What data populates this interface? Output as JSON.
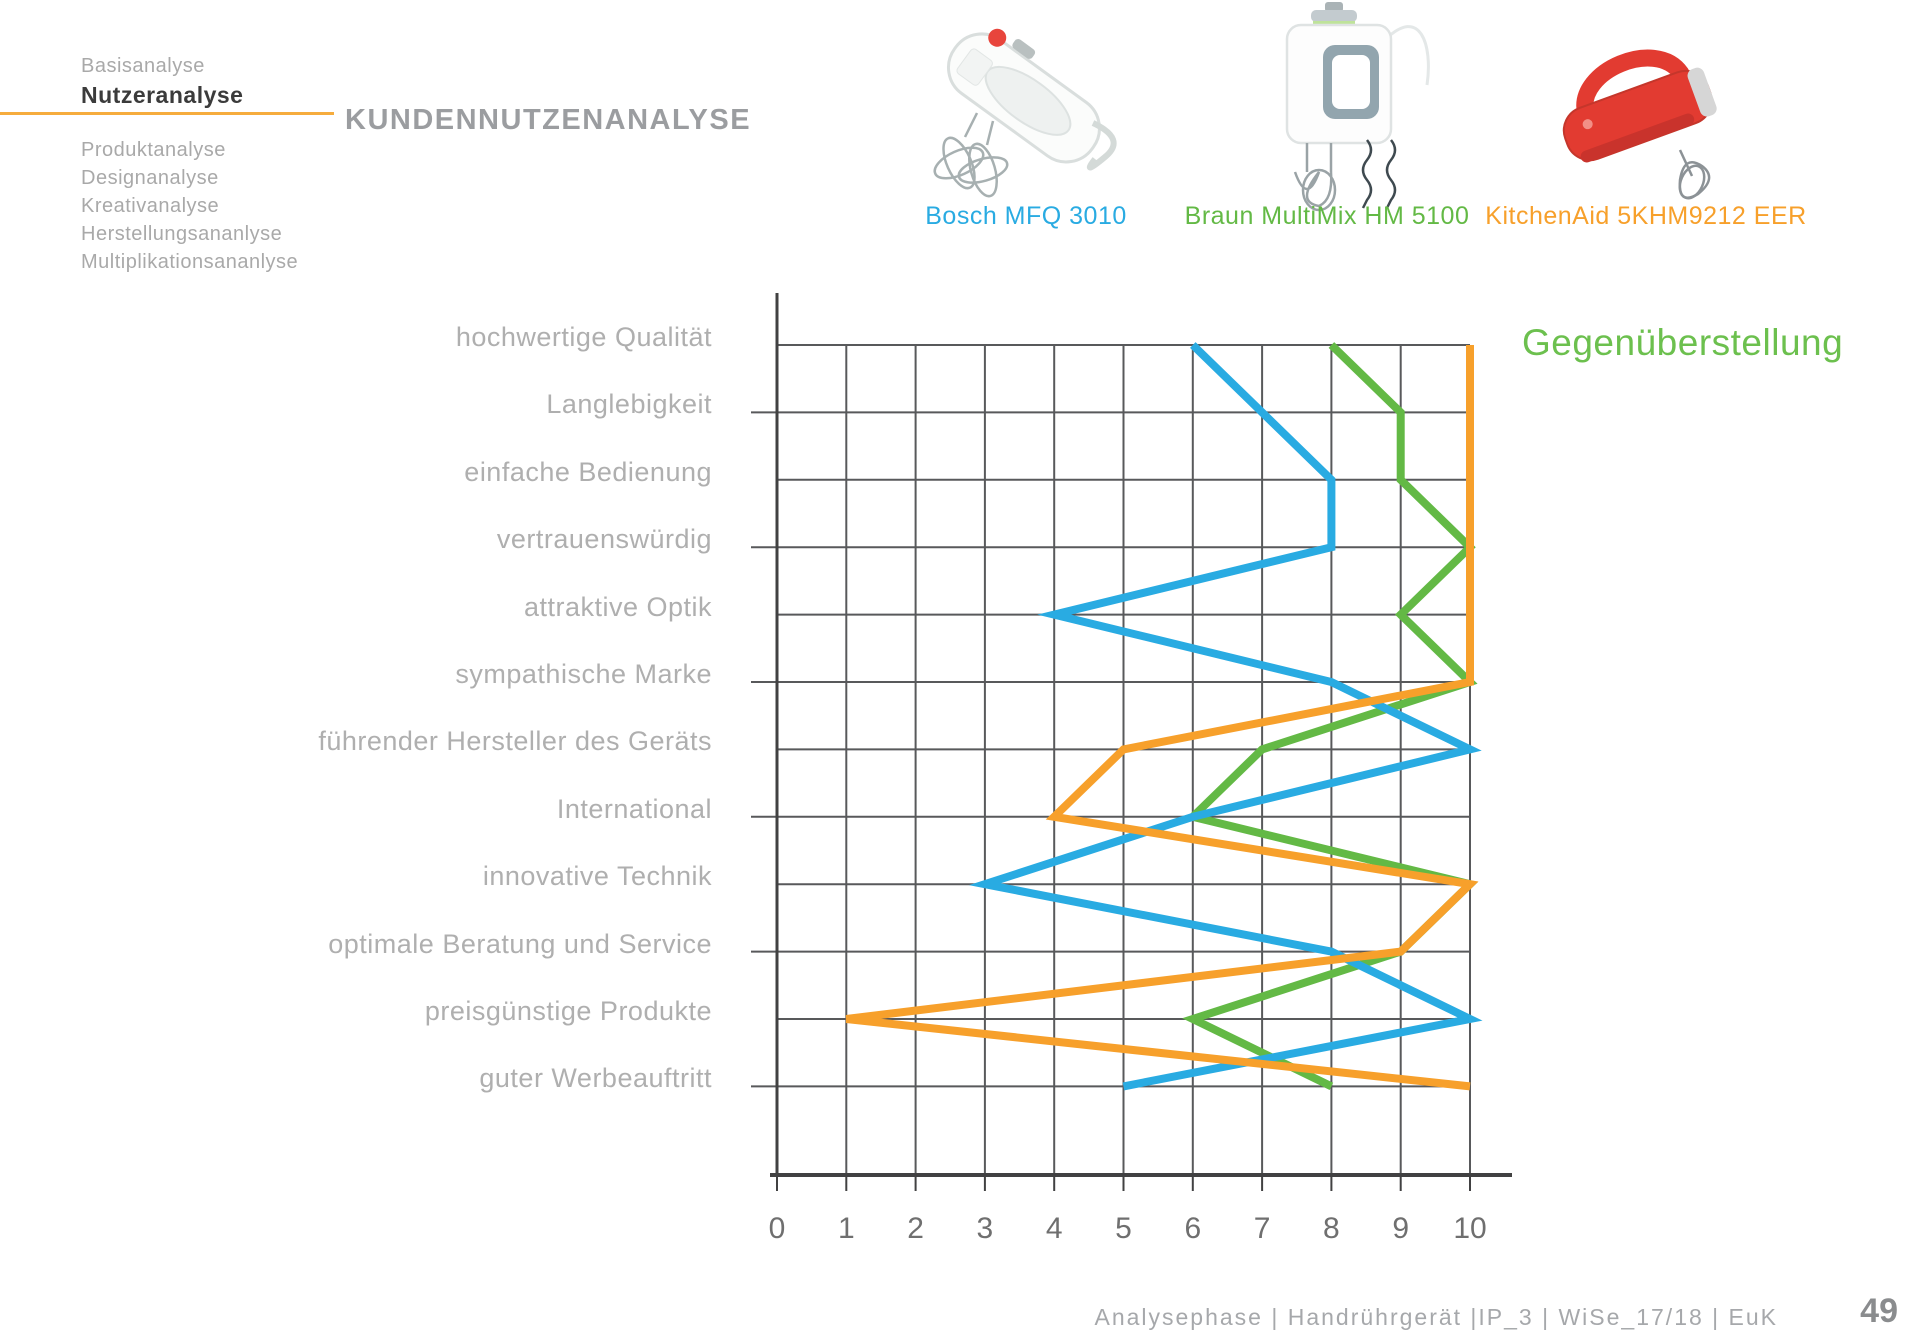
{
  "sidebar": {
    "items": [
      {
        "label": "Basisanalyse",
        "active": false
      },
      {
        "label": "Nutzeranalyse",
        "active": true
      },
      {
        "label": "Produktanalyse",
        "active": false
      },
      {
        "label": "Designanalyse",
        "active": false
      },
      {
        "label": "Kreativanalyse",
        "active": false
      },
      {
        "label": "Herstellungsananlyse",
        "active": false
      },
      {
        "label": "Multiplikationsananlyse",
        "active": false
      }
    ],
    "accent_color": "#f6ac3d"
  },
  "header": {
    "title": "KUNDENNUTZENANALYSE"
  },
  "products": [
    {
      "name": "Bosch MFQ 3010",
      "color": "#29abe2"
    },
    {
      "name": "Braun MultiMix HM 5100",
      "color": "#63b945"
    },
    {
      "name": "KitchenAid 5KHM9212 EER",
      "color": "#f7a02b"
    }
  ],
  "chart_heading": "Gegenüberstellung",
  "chart_heading_color": "#6cc04e",
  "chart_data": {
    "type": "line",
    "orientation": "horizontal-value-axis",
    "title": "Gegenüberstellung",
    "categories": [
      "hochwertige Qualität",
      "Langlebigkeit",
      "einfache Bedienung",
      "vertrauenswürdig",
      "attraktive Optik",
      "sympathische Marke",
      "führender Hersteller des Geräts",
      "International",
      "innovative Technik",
      "optimale Beratung und Service",
      "preisgünstige Produkte",
      "guter Werbeauftritt"
    ],
    "xlim": [
      0,
      10
    ],
    "x_ticks": [
      0,
      1,
      2,
      3,
      4,
      5,
      6,
      7,
      8,
      9,
      10
    ],
    "grid": true,
    "series": [
      {
        "name": "Bosch MFQ 3010",
        "color": "#29abe2",
        "values": [
          6,
          7,
          8,
          8,
          4,
          8,
          10,
          6,
          3,
          8,
          10,
          5
        ]
      },
      {
        "name": "Braun MultiMix HM 5100",
        "color": "#63b945",
        "values": [
          8,
          9,
          9,
          10,
          9,
          10,
          7,
          6,
          10,
          9,
          6,
          8
        ]
      },
      {
        "name": "KitchenAid 5KHM9212 EER",
        "color": "#f7a02b",
        "values": [
          10,
          10,
          10,
          10,
          10,
          10,
          5,
          4,
          10,
          9,
          1,
          10
        ]
      }
    ]
  },
  "footer": {
    "text": "Analysephase  |  Handrührgerät  |IP_3  |  WiSe_17/18  |  EuK",
    "page": "49"
  }
}
